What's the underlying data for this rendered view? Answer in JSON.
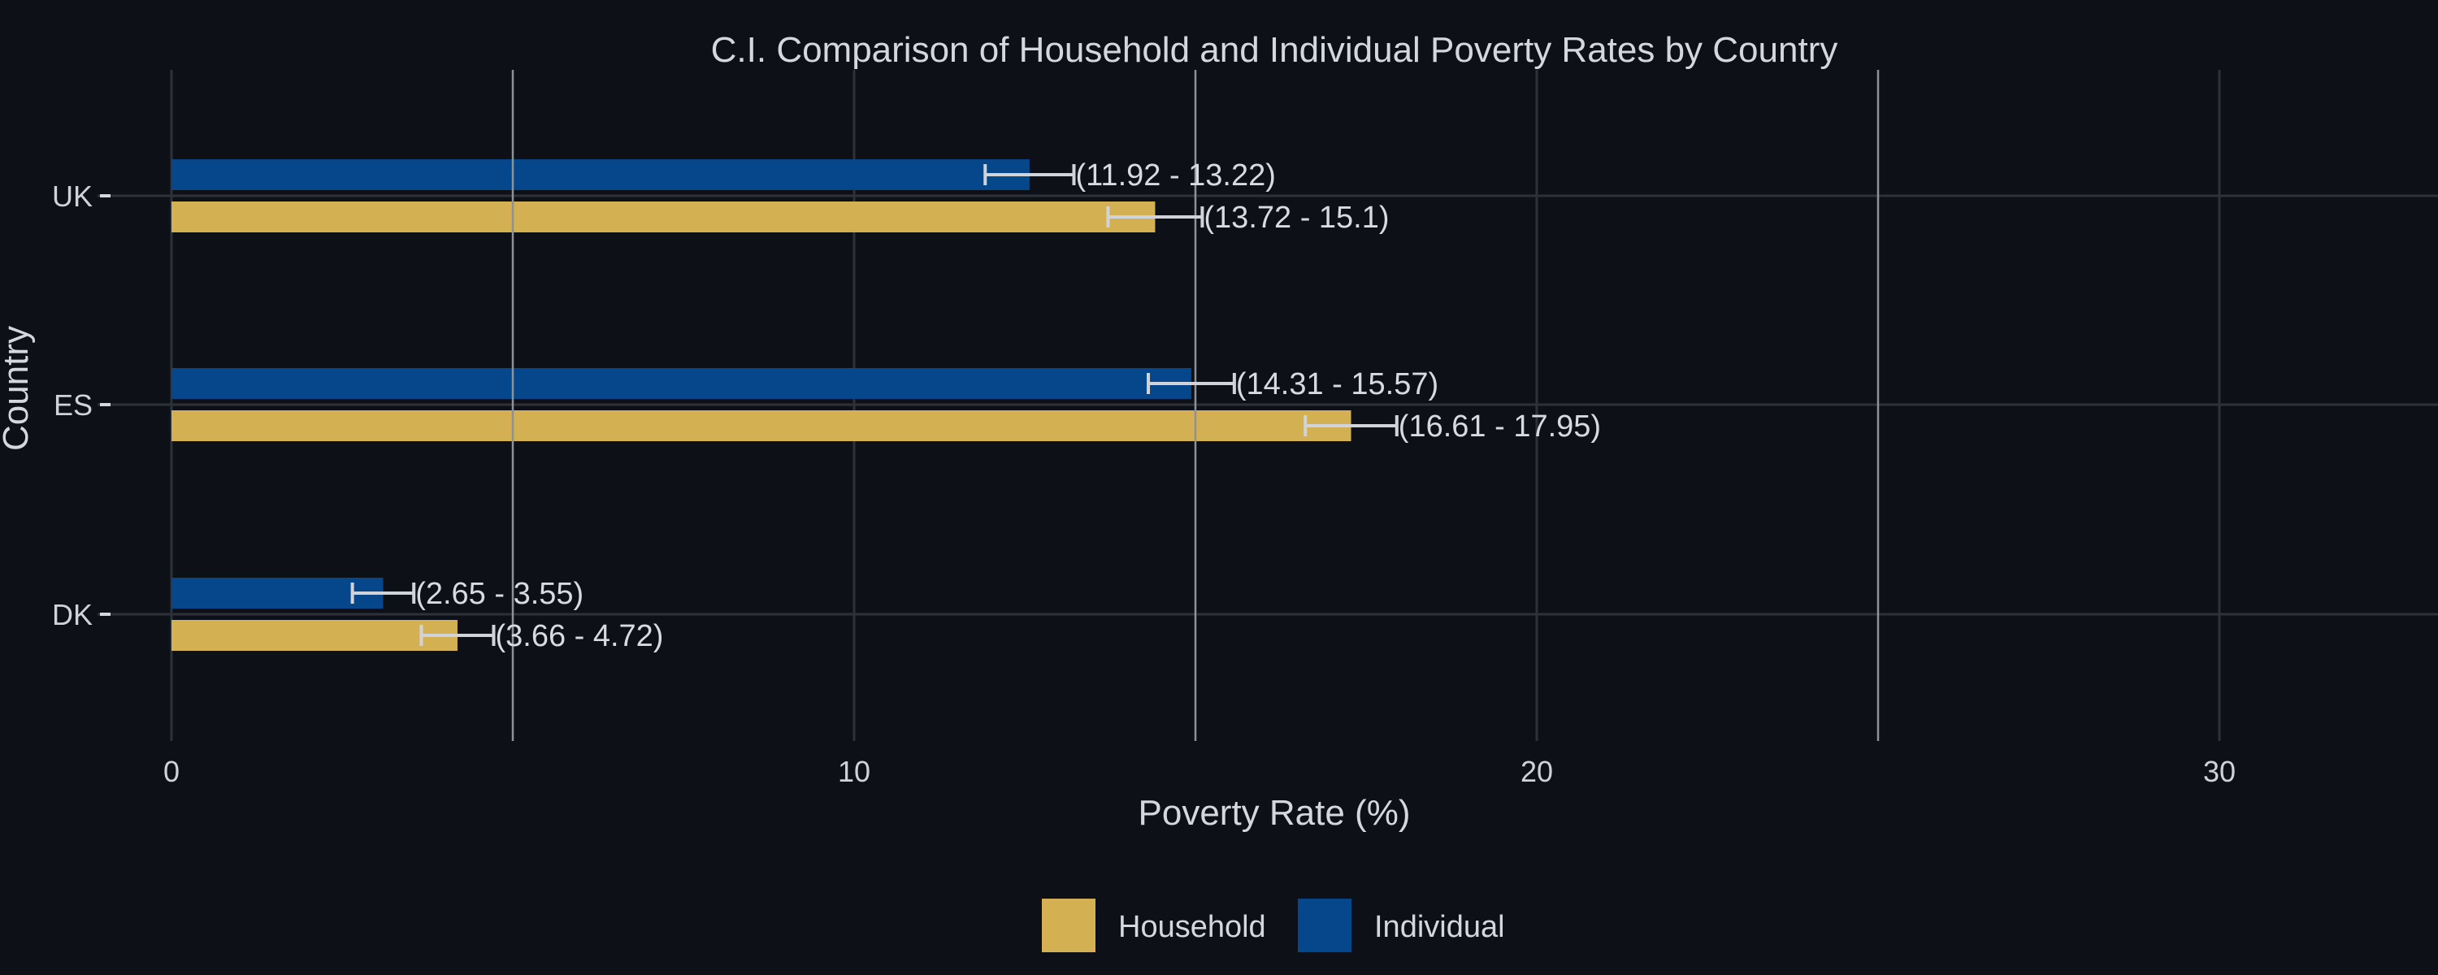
{
  "chart_data": {
    "type": "bar",
    "orientation": "horizontal",
    "title": "C.I. Comparison of Household and Individual Poverty Rates by Country",
    "xlabel": "Poverty Rate (%)",
    "ylabel": "Country",
    "xlim": [
      0,
      32.5
    ],
    "x_ticks": [
      0,
      10,
      20,
      30
    ],
    "x_tick_labels": [
      "0",
      "10",
      "20",
      "30"
    ],
    "reference_lines": [
      5,
      15,
      25
    ],
    "categories": [
      "UK",
      "ES",
      "DK"
    ],
    "series": [
      {
        "name": "Individual",
        "color": "#05478a",
        "values": [
          12.57,
          14.94,
          3.1
        ],
        "ci_low": [
          11.92,
          14.31,
          2.65
        ],
        "ci_high": [
          13.22,
          15.57,
          3.55
        ],
        "ci_labels": [
          "(11.92 - 13.22)",
          "(14.31 - 15.57)",
          "(2.65 - 3.55)"
        ]
      },
      {
        "name": "Household",
        "color": "#d3b052",
        "values": [
          14.41,
          17.28,
          4.19
        ],
        "ci_low": [
          13.72,
          16.61,
          3.66
        ],
        "ci_high": [
          15.1,
          17.95,
          4.72
        ],
        "ci_labels": [
          "(13.72 - 15.1)",
          "(16.61 - 17.95)",
          "(3.66 - 4.72)"
        ]
      }
    ],
    "legend": {
      "placement": "bottom",
      "items": [
        "Household",
        "Individual"
      ]
    },
    "colors": {
      "background": "#0d1017",
      "grid": "#2e3238",
      "reference_line": "#8e9196",
      "errorbar": "#d0d4da"
    },
    "grid": true
  }
}
